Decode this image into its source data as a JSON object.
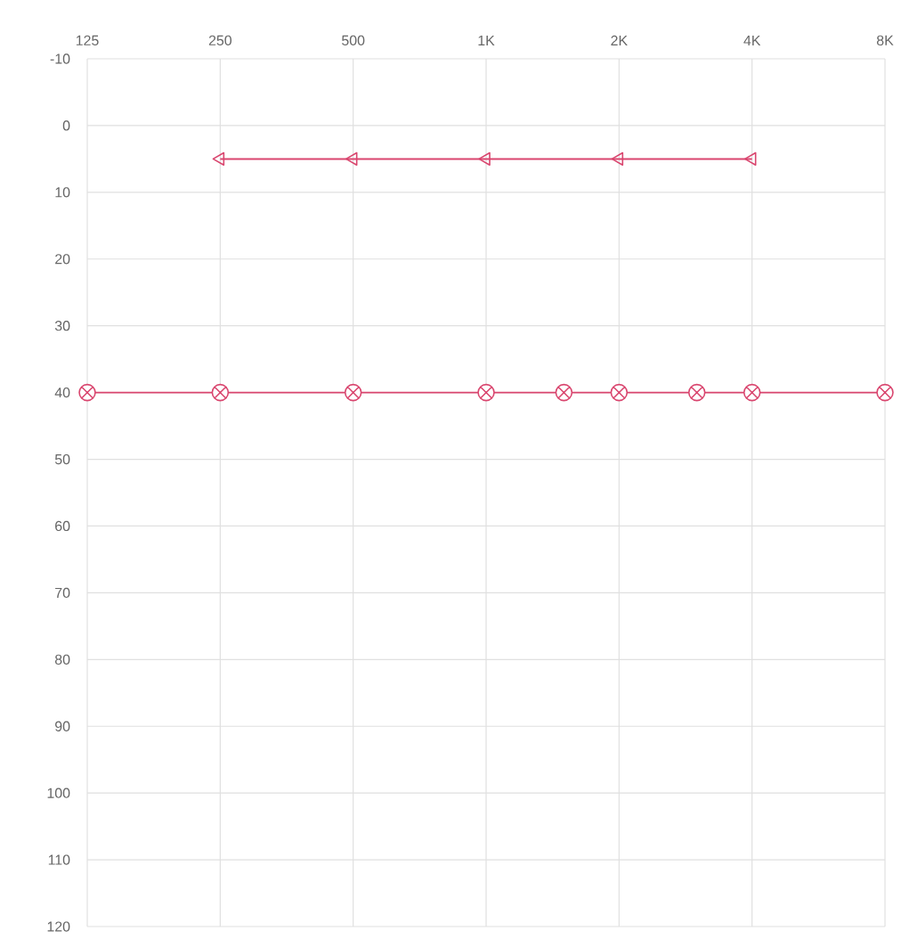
{
  "chart_data": {
    "type": "line",
    "log": "x",
    "grid": true,
    "xlim": [
      125,
      8000
    ],
    "xticks": [
      125,
      250,
      500,
      {
        "value": 1000,
        "label": "1K"
      },
      {
        "value": 2000,
        "label": "2K"
      },
      {
        "value": 4000,
        "label": "4K"
      },
      {
        "value": 8000,
        "label": "8K"
      }
    ],
    "ylim": [
      120,
      -10
    ],
    "yticks": [
      -10,
      0,
      10,
      20,
      30,
      40,
      50,
      60,
      70,
      80,
      90,
      100,
      110,
      120
    ],
    "series": [
      {
        "color": "#d9456e",
        "marker": "triangle",
        "x": [
          250,
          500,
          1000,
          2000,
          4000
        ],
        "values": [
          5,
          5,
          5,
          5,
          5
        ]
      },
      {
        "color": "#d9456e",
        "marker": "cross",
        "x": [
          125,
          250,
          500,
          1000,
          1500,
          2000,
          3000,
          4000,
          8000
        ],
        "values": [
          40,
          40,
          40,
          40,
          40,
          40,
          40,
          40,
          40
        ]
      }
    ]
  }
}
